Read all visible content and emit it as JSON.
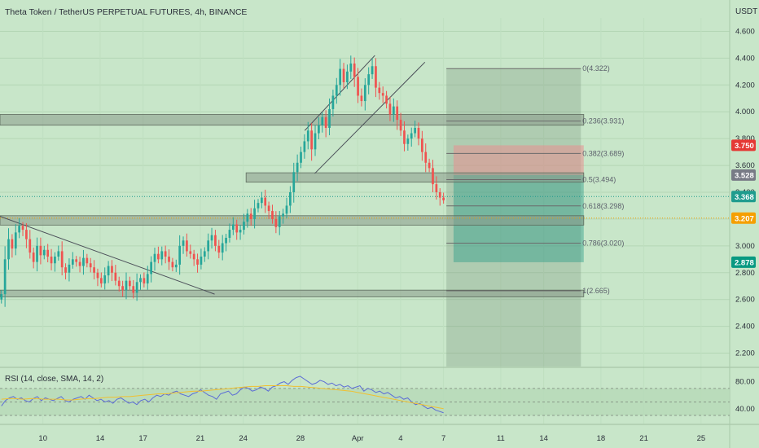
{
  "header": {
    "title": "Theta Token / TetherUS PERPETUAL FUTURES, 4h, BINANCE"
  },
  "currency": "USDT",
  "colors": {
    "background": "#c8e6c9",
    "up": "#26a69a",
    "down": "#ef5350",
    "zone": "#8a9a8a",
    "rsi_line": "#5b6bd6",
    "rsi_sma": "#f0c030",
    "fib_line": "#6b6b6b",
    "current_price": "#1f9c8e",
    "orange_level": "#f59f00",
    "red_tag": "#e53935",
    "gray_tag": "#787b86",
    "green_tag": "#089981"
  },
  "chart_data": {
    "type": "candlestick",
    "title": "Theta Token / TetherUS PERPETUAL FUTURES, 4h, BINANCE",
    "ylim": [
      2.1,
      4.7
    ],
    "y_ticks": [
      "4.600",
      "4.400",
      "4.200",
      "4.000",
      "3.800",
      "3.600",
      "3.400",
      "3.200",
      "3.000",
      "2.800",
      "2.600",
      "2.400",
      "2.200"
    ],
    "y_tick_values": [
      4.6,
      4.4,
      4.2,
      4.0,
      3.8,
      3.6,
      3.4,
      3.2,
      3.0,
      2.8,
      2.6,
      2.4,
      2.2
    ],
    "x_ticks": [
      "10",
      "14",
      "17",
      "21",
      "24",
      "28",
      "Apr",
      "4",
      "7",
      "11",
      "14",
      "18",
      "21",
      "25"
    ],
    "x_tick_days": [
      10,
      14,
      17,
      21,
      24,
      28,
      32,
      35,
      38,
      42,
      45,
      49,
      52,
      56
    ],
    "x_range_days": [
      7,
      58
    ],
    "closes": [
      2.64,
      2.9,
      3.05,
      2.98,
      3.1,
      3.15,
      3.12,
      3.05,
      2.95,
      2.88,
      3.0,
      2.93,
      2.97,
      2.92,
      2.87,
      2.92,
      2.96,
      2.84,
      2.8,
      2.86,
      2.9,
      2.88,
      2.85,
      2.91,
      2.87,
      2.84,
      2.8,
      2.76,
      2.72,
      2.78,
      2.85,
      2.8,
      2.74,
      2.7,
      2.67,
      2.74,
      2.7,
      2.65,
      2.73,
      2.76,
      2.72,
      2.79,
      2.88,
      2.94,
      2.9,
      2.96,
      2.92,
      2.88,
      2.84,
      2.86,
      3.0,
      3.04,
      2.96,
      2.94,
      2.9,
      2.86,
      2.92,
      2.96,
      3.04,
      3.08,
      3.0,
      2.95,
      3.02,
      3.06,
      3.12,
      3.16,
      3.1,
      3.12,
      3.18,
      3.24,
      3.2,
      3.28,
      3.32,
      3.36,
      3.3,
      3.26,
      3.2,
      3.14,
      3.22,
      3.24,
      3.3,
      3.4,
      3.55,
      3.62,
      3.7,
      3.78,
      3.86,
      3.72,
      3.84,
      3.9,
      3.96,
      3.88,
      4.02,
      4.12,
      4.2,
      4.32,
      4.22,
      4.3,
      4.36,
      4.26,
      4.12,
      4.08,
      4.2,
      4.28,
      4.34,
      4.18,
      4.14,
      4.12,
      4.06,
      3.98,
      4.04,
      3.94,
      3.86,
      3.76,
      3.8,
      3.84,
      3.88,
      3.8,
      3.7,
      3.62,
      3.58,
      3.46,
      3.4,
      3.36,
      3.34
    ],
    "price_tags": [
      {
        "label": "3.750",
        "value": 3.75,
        "color": "red_tag"
      },
      {
        "label": "3.528",
        "value": 3.528,
        "color": "gray_tag"
      },
      {
        "label": "3.368",
        "value": 3.368,
        "color": "current_price"
      },
      {
        "label": "3.207",
        "value": 3.207,
        "color": "orange_level"
      },
      {
        "label": "2.878",
        "value": 2.878,
        "color": "green_tag"
      }
    ],
    "fib_levels": [
      {
        "label": "0(4.322)",
        "value": 4.322
      },
      {
        "label": "0.236(3.931)",
        "value": 3.931
      },
      {
        "label": "0.382(3.689)",
        "value": 3.689
      },
      {
        "label": "0.5(3.494)",
        "value": 3.494
      },
      {
        "label": "0.618(3.298)",
        "value": 3.298
      },
      {
        "label": "0.786(3.020)",
        "value": 3.02
      },
      {
        "label": "1(2.665)",
        "value": 2.665
      }
    ],
    "zones": [
      {
        "from": 3.9,
        "to": 3.98
      },
      {
        "from": 3.475,
        "to": 3.545
      },
      {
        "from": 3.155,
        "to": 3.225
      },
      {
        "from": 2.62,
        "to": 2.67
      }
    ],
    "position": {
      "stop": 3.75,
      "entry": 3.528,
      "target": 2.878
    },
    "trendlines": [
      {
        "from": [
          7,
          3.22
        ],
        "to": [
          22,
          2.64
        ]
      },
      {
        "from": [
          28.3,
          3.86
        ],
        "to": [
          33.2,
          4.42
        ]
      },
      {
        "from": [
          29,
          3.54
        ],
        "to": [
          36.7,
          4.37
        ]
      }
    ]
  },
  "rsi": {
    "label": "RSI (14, close, SMA, 14, 2)",
    "ylim": [
      18,
      100
    ],
    "y_ticks": [
      "80.00",
      "40.00"
    ],
    "y_tick_values": [
      80,
      40
    ],
    "band": [
      30,
      70
    ],
    "values": [
      44,
      52,
      56,
      58,
      54,
      56,
      52,
      50,
      55,
      58,
      52,
      56,
      54,
      52,
      55,
      58,
      52,
      50,
      54,
      56,
      58,
      54,
      60,
      56,
      52,
      54,
      50,
      52,
      48,
      54,
      56,
      52,
      48,
      50,
      46,
      52,
      54,
      50,
      56,
      60,
      58,
      62,
      60,
      64,
      66,
      62,
      60,
      58,
      62,
      64,
      68,
      64,
      60,
      58,
      54,
      62,
      64,
      66,
      60,
      62,
      68,
      72,
      70,
      66,
      68,
      72,
      70,
      66,
      72,
      74,
      78,
      80,
      76,
      82,
      86,
      88,
      84,
      80,
      76,
      78,
      82,
      80,
      76,
      78,
      74,
      76,
      72,
      74,
      70,
      72,
      74,
      66,
      70,
      68,
      64,
      66,
      62,
      64,
      60,
      56,
      58,
      54,
      56,
      50,
      46,
      48,
      44,
      40,
      42,
      38,
      36,
      34
    ],
    "sma_values": [
      54,
      55,
      55,
      54,
      55,
      55,
      54,
      54,
      54,
      53,
      53,
      54,
      55,
      55,
      56,
      57,
      57,
      58,
      58,
      59,
      60,
      61,
      62,
      62,
      63,
      64,
      65,
      66,
      66,
      67,
      68,
      69,
      70,
      71,
      72,
      73,
      73,
      74,
      74,
      74,
      74,
      73,
      73,
      72,
      71,
      70,
      69,
      68,
      67,
      66,
      64,
      62,
      60,
      58,
      56,
      54,
      52,
      50,
      48,
      46,
      44,
      42,
      40
    ]
  }
}
